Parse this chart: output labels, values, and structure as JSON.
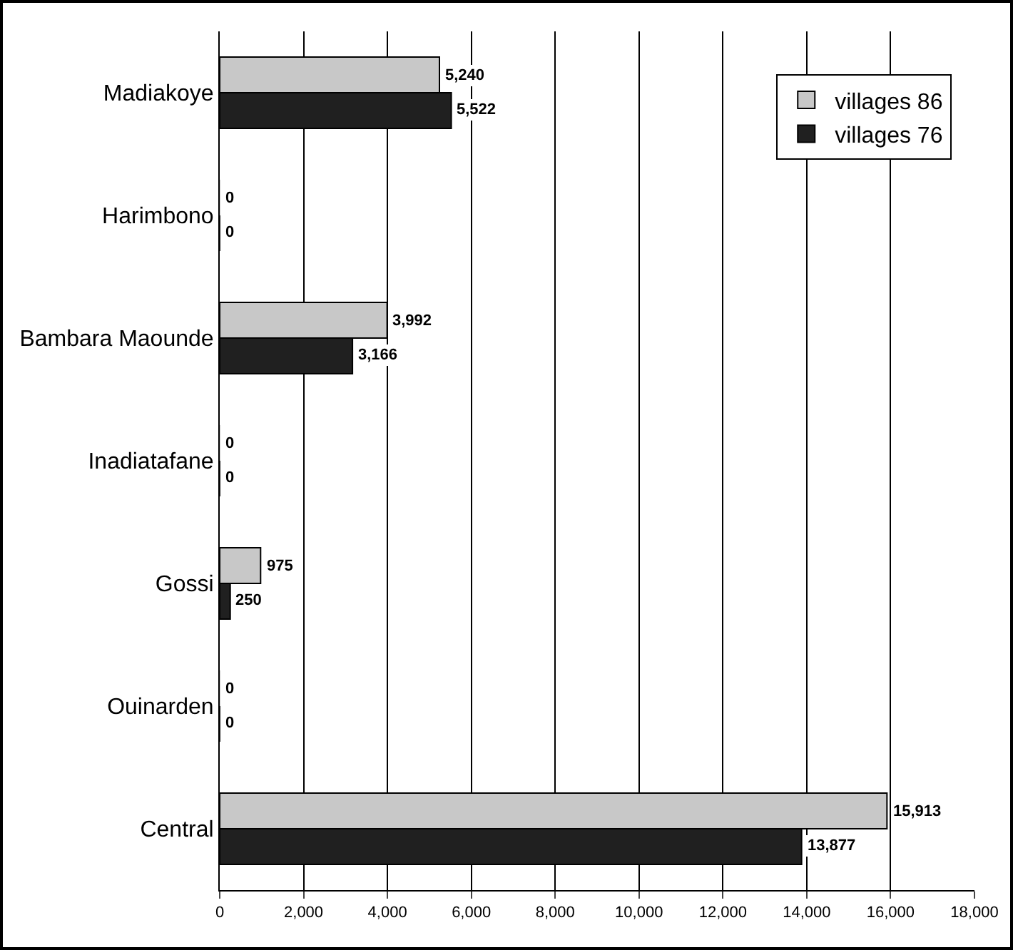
{
  "chart_data": {
    "type": "bar",
    "orientation": "horizontal",
    "categories": [
      "Madiakoye",
      "Harimbono",
      "Bambara Maounde",
      "Inadiatafane",
      "Gossi",
      "Ouinarden",
      "Central"
    ],
    "series": [
      {
        "name": "villages 86",
        "color": "#c8c8c8",
        "values": [
          5240,
          0,
          3992,
          0,
          975,
          0,
          15913
        ],
        "value_labels": [
          "5,240",
          "0",
          "3,992",
          "0",
          "975",
          "0",
          "15,913"
        ]
      },
      {
        "name": "villages 76",
        "color": "#202020",
        "values": [
          5522,
          0,
          3166,
          0,
          250,
          0,
          13877
        ],
        "value_labels": [
          "5,522",
          "0",
          "3,166",
          "0",
          "250",
          "0",
          "13,877"
        ]
      }
    ],
    "xlim": [
      0,
      18000
    ],
    "xticks": [
      0,
      {
        "value": 2000,
        "label": "2,000"
      },
      {
        "value": 4000,
        "label": "4,000"
      },
      {
        "value": 6000,
        "label": "6,000"
      },
      {
        "value": 8000,
        "label": "8,000"
      },
      {
        "value": 10000,
        "label": "10,000"
      },
      {
        "value": 12000,
        "label": "12,000"
      },
      {
        "value": 14000,
        "label": "14,000"
      },
      {
        "value": 16000,
        "label": "16,000"
      },
      {
        "value": 18000,
        "label": "18,000"
      }
    ],
    "grid": "x",
    "legend": "top right"
  }
}
